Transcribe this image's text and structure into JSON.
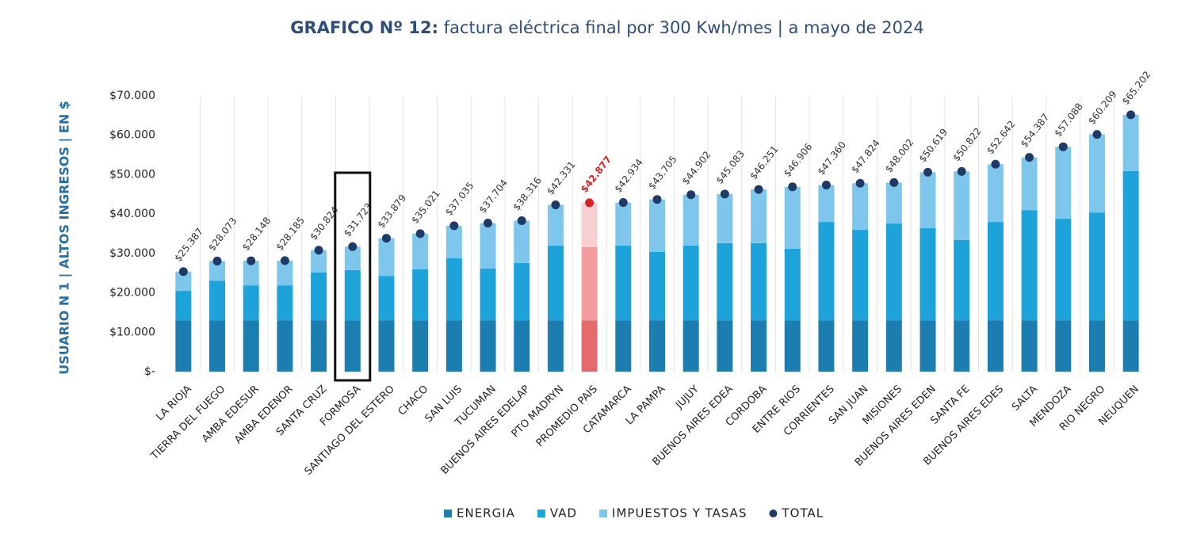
{
  "chart_data": {
    "type": "stacked_bar",
    "title_bold": "GRAFICO Nº 12:",
    "title": "factura eléctrica final por 300 Kwh/mes | a mayo de 2024",
    "y_label": "USUARIO N 1 | ALTOS INGRESOS | EN $",
    "categories": [
      "LA RIOJA",
      "TIERRA DEL FUEGO",
      "AMBA EDESUR",
      "AMBA EDENOR",
      "SANTA CRUZ",
      "FORMOSA",
      "SANTIAGO DEL ESTERO",
      "CHACO",
      "SAN LUIS",
      "TUCUMAN",
      "BUENOS AIRES EDELAP",
      "PTO MADRYN",
      "PROMEDIO PAIS",
      "CATAMARCA",
      "LA PAMPA",
      "JUJUY",
      "BUENOS AIRES EDEA",
      "CORDOBA",
      "ENTRE RIOS",
      "CORRIENTES",
      "SAN JUAN",
      "MISIONES",
      "BUENOS AIRES EDEN",
      "SANTA FE",
      "BUENOS AIRES EDES",
      "SALTA",
      "MENDOZA",
      "RIO NEGRO",
      "NEUQUEN"
    ],
    "series": [
      {
        "name": "ENERGIA",
        "color": "#1b7db0",
        "highlight_color": "#e46a6c",
        "values": [
          13000,
          13000,
          13000,
          13000,
          13000,
          13000,
          13000,
          13000,
          13000,
          13000,
          13000,
          13000,
          13000,
          13000,
          13000,
          13000,
          13000,
          13000,
          13000,
          13000,
          13000,
          13000,
          13000,
          13000,
          13000,
          13000,
          13000,
          13000,
          13000
        ]
      },
      {
        "name": "VAD",
        "color": "#1ea2da",
        "highlight_color": "#f29ca0",
        "values": [
          7500,
          10100,
          8900,
          8900,
          12200,
          12800,
          11300,
          13000,
          15800,
          13200,
          14600,
          19000,
          18600,
          19000,
          17400,
          19000,
          19600,
          19600,
          18200,
          25000,
          23000,
          24600,
          23400,
          20400,
          25000,
          28000,
          25800,
          27400,
          37900
        ]
      },
      {
        "name": "IMPUESTOS Y TASAS",
        "color": "#7fc6ec",
        "highlight_color": "#f8d0d2",
        "values": [
          4887,
          4973,
          6248,
          6285,
          5624,
          5923,
          9579,
          9021,
          8235,
          11504,
          10716,
          10331,
          11277,
          10934,
          13305,
          12902,
          12483,
          13651,
          15706,
          9360,
          11824,
          10402,
          14219,
          17422,
          14642,
          13387,
          18288,
          19809,
          14302
        ]
      }
    ],
    "total": {
      "name": "TOTAL",
      "color": "#1f3a66",
      "highlight_color": "#d42424",
      "values": [
        25387,
        28073,
        28148,
        28185,
        30824,
        31723,
        33879,
        35021,
        37035,
        37704,
        38316,
        42331,
        42877,
        42934,
        43705,
        44902,
        45083,
        46251,
        46906,
        47360,
        47824,
        48002,
        50619,
        50822,
        52642,
        54387,
        57088,
        60209,
        65202
      ],
      "value_labels": [
        "$25.387",
        "$28.073",
        "$28.148",
        "$28.185",
        "$30.824",
        "$31.723",
        "$33.879",
        "$35.021",
        "$37.035",
        "$37.704",
        "$38.316",
        "$42.331",
        "$42.877",
        "$42.934",
        "$43.705",
        "$44.902",
        "$45.083",
        "$46.251",
        "$46.906",
        "$47.360",
        "$47.824",
        "$48.002",
        "$50.619",
        "$50.822",
        "$52.642",
        "$54.387",
        "$57.088",
        "$60.209",
        "$65.202"
      ]
    },
    "highlight_index": 12,
    "boxed_index": 5,
    "ylim": [
      0,
      70000
    ],
    "yticks": [
      {
        "value": 0,
        "label": "$-"
      },
      {
        "value": 10000,
        "label": "$10.000"
      },
      {
        "value": 20000,
        "label": "$20.000"
      },
      {
        "value": 30000,
        "label": "$30.000"
      },
      {
        "value": 40000,
        "label": "$40.000"
      },
      {
        "value": 50000,
        "label": "$50.000"
      },
      {
        "value": 60000,
        "label": "$60.000"
      },
      {
        "value": 70000,
        "label": "$70.000"
      }
    ],
    "grid": false,
    "legend": "bottom"
  }
}
